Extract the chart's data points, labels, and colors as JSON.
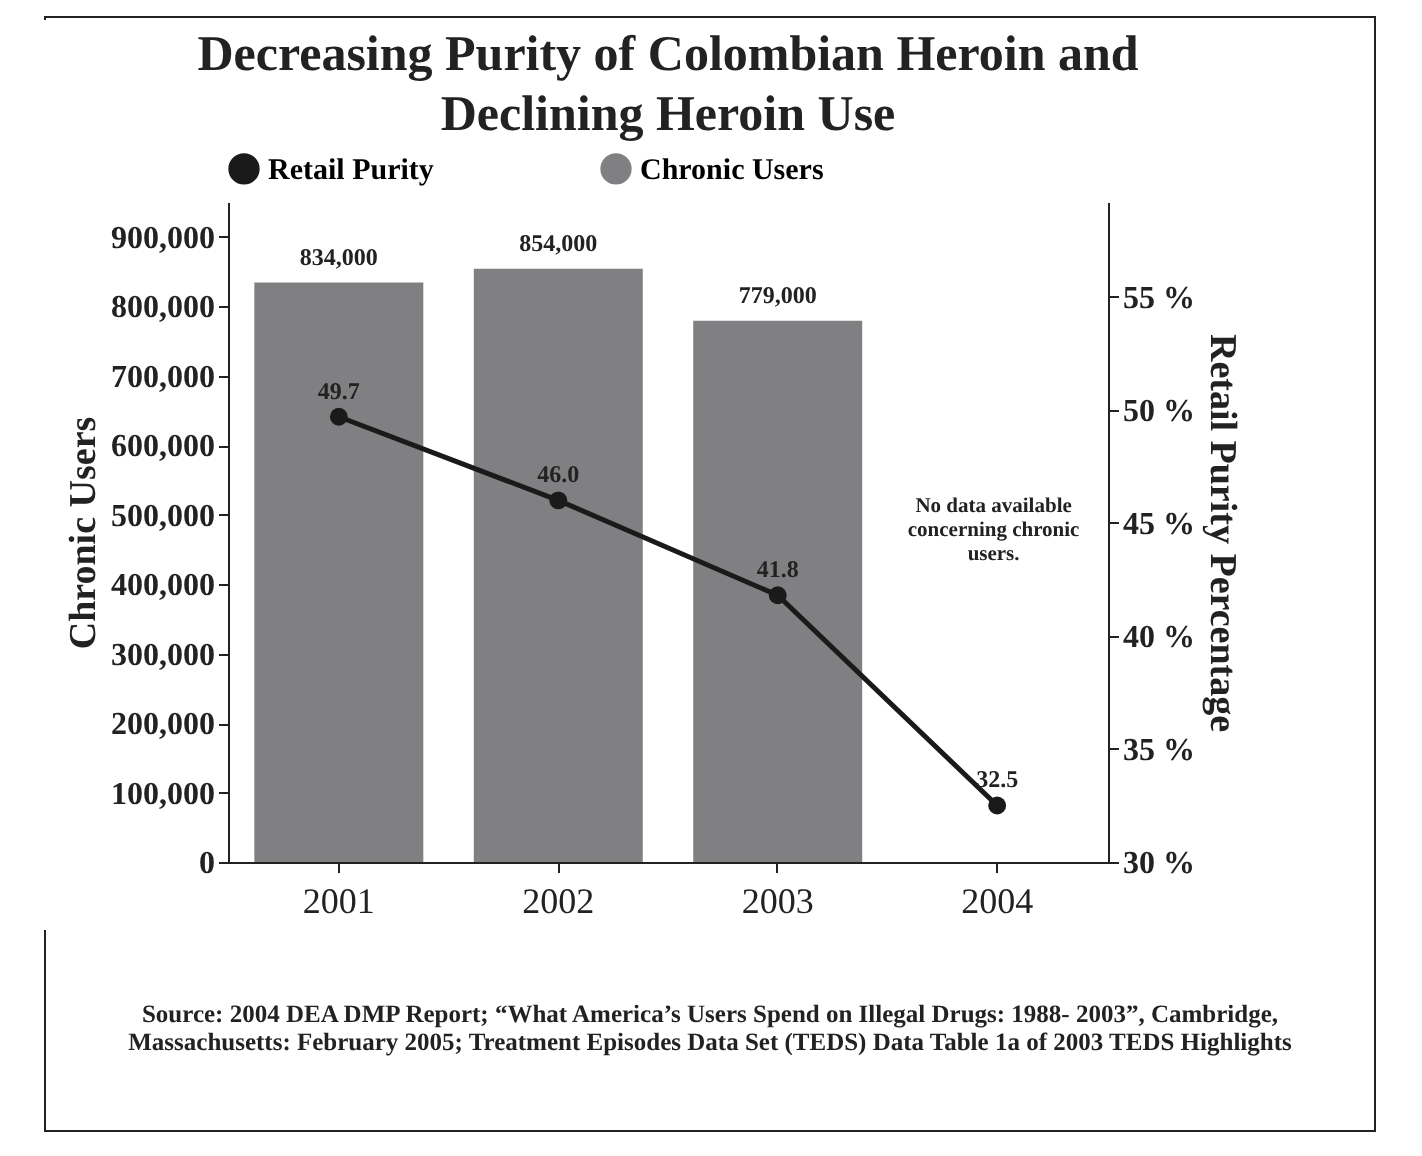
{
  "chart_data": {
    "type": "bar",
    "title": "Decreasing Purity of Colombian Heroin and Declining Heroin Use",
    "ylabel": "Chronic Users",
    "y2label": "Retail Purity Percentage",
    "categories": [
      "2001",
      "2002",
      "2003",
      "2004"
    ],
    "series": [
      {
        "name": "Retail Purity",
        "type": "line",
        "axis": "y2",
        "color": "#1a1a1a",
        "marker": "circle",
        "values": [
          49.7,
          46.0,
          41.8,
          32.5
        ],
        "value_labels": [
          "49.7",
          "46.0",
          "41.8",
          "32.5"
        ]
      },
      {
        "name": "Chronic Users",
        "color": "#808083",
        "values": [
          834000,
          854000,
          779000,
          null
        ],
        "value_labels": [
          "834,000",
          "854,000",
          "779,000",
          null
        ]
      }
    ],
    "ylim": [
      0,
      950000
    ],
    "yticks": [
      {
        "value": 0,
        "label": "0"
      },
      {
        "value": 100000,
        "label": "100,000"
      },
      {
        "value": 200000,
        "label": "200,000"
      },
      {
        "value": 300000,
        "label": "300,000"
      },
      {
        "value": 400000,
        "label": "400,000"
      },
      {
        "value": 500000,
        "label": "500,000"
      },
      {
        "value": 600000,
        "label": "600,000"
      },
      {
        "value": 700000,
        "label": "700,000"
      },
      {
        "value": 800000,
        "label": "800,000"
      },
      {
        "value": 900000,
        "label": "900,000"
      }
    ],
    "y2lim": [
      30,
      59.2
    ],
    "y2ticks": [
      {
        "value": 30,
        "label": "30 %"
      },
      {
        "value": 35,
        "label": "35 %"
      },
      {
        "value": 40,
        "label": "40 %"
      },
      {
        "value": 45,
        "label": "45 %"
      },
      {
        "value": 50,
        "label": "50 %"
      },
      {
        "value": 55,
        "label": "55 %"
      }
    ],
    "grid": false,
    "legend": "top",
    "annotations": [
      "No data available concerning chronic users.",
      "Source: 2004 DEA DMP Report; “What America’s Users Spend on Illegal Drugs: 1988- 2003”, Cambridge, Massachusetts: February 2005; Treatment Episodes Data Set (TEDS) Data Table 1a of 2003 TEDS Highlights"
    ]
  }
}
